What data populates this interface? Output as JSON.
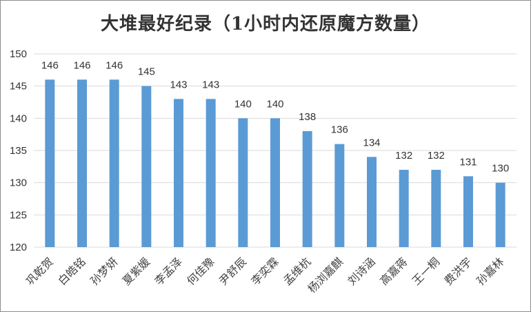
{
  "chart_data": {
    "type": "bar",
    "title": "大堆最好纪录（1小时内还原魔方数量）",
    "xlabel": "",
    "ylabel": "",
    "ylim": [
      120,
      150
    ],
    "yticks": [
      120,
      125,
      130,
      135,
      140,
      145,
      150
    ],
    "grid": true,
    "bar_color": "#5b9bd5",
    "categories": [
      "巩乾贺",
      "白皓铭",
      "孙梦妍",
      "夏紫媛",
      "李孟泽",
      "何佳豫",
      "尹舒辰",
      "李奕霖",
      "孟维杭",
      "杨浏嘉麒",
      "刘诗涵",
      "高嘉蒋",
      "王一桐",
      "费洪宇",
      "孙嘉林"
    ],
    "values": [
      146,
      146,
      146,
      145,
      143,
      143,
      140,
      140,
      138,
      136,
      134,
      132,
      132,
      131,
      130
    ]
  }
}
